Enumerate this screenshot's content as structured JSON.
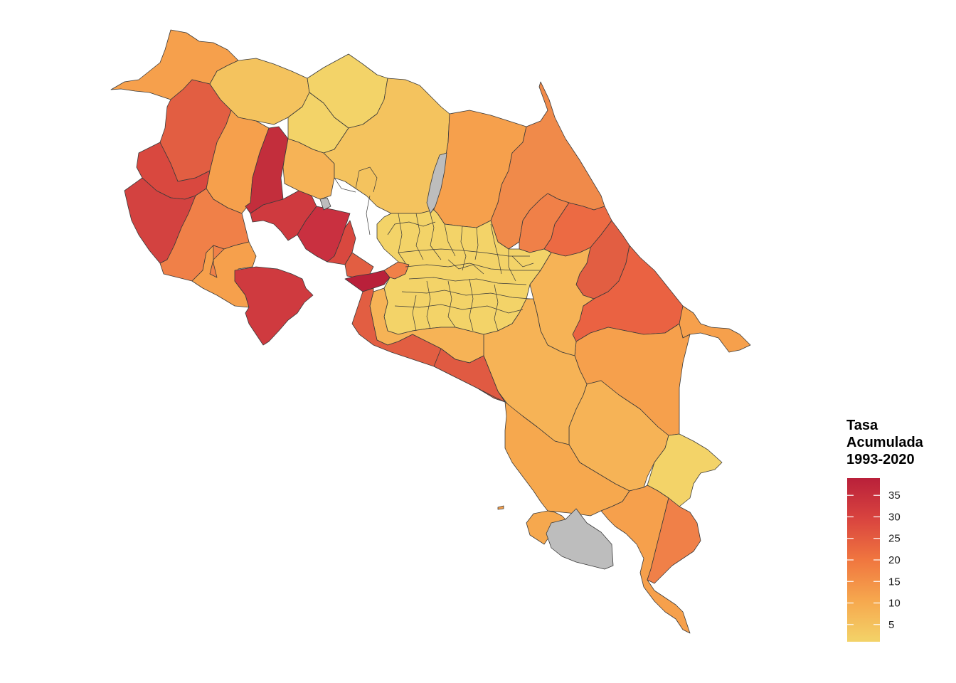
{
  "legend": {
    "title_lines": [
      "Tasa",
      "Acumulada",
      "1993-2020"
    ],
    "ticks": [
      {
        "label": "35",
        "value": 35
      },
      {
        "label": "30",
        "value": 30
      },
      {
        "label": "25",
        "value": 25
      },
      {
        "label": "20",
        "value": 20
      },
      {
        "label": "15",
        "value": 15
      },
      {
        "label": "10",
        "value": 10
      },
      {
        "label": "5",
        "value": 5
      }
    ],
    "scale_min": 1,
    "scale_max": 39,
    "colors": [
      "#f3d368",
      "#f6a84e",
      "#f0763f",
      "#d9443f",
      "#b9203a"
    ],
    "no_data_color": "#bdbdbd"
  }
}
